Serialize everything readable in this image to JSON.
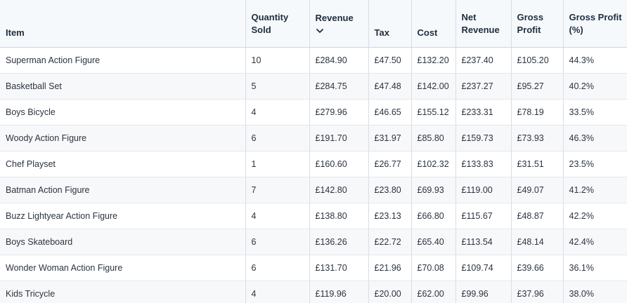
{
  "table": {
    "columns": [
      {
        "line1": "Item",
        "line2": ""
      },
      {
        "line1": "Quantity",
        "line2": "Sold"
      },
      {
        "line1": "Revenue",
        "line2": ""
      },
      {
        "line1": "Tax",
        "line2": ""
      },
      {
        "line1": "Cost",
        "line2": ""
      },
      {
        "line1": "Net",
        "line2": "Revenue"
      },
      {
        "line1": "Gross",
        "line2": "Profit"
      },
      {
        "line1": "Gross Profit",
        "line2": "(%)"
      }
    ],
    "sorted_by": "Revenue",
    "sort_direction": "descending",
    "sort_icon": "chevron-down-icon",
    "rows": [
      [
        "Superman Action Figure",
        "10",
        "£284.90",
        "£47.50",
        "£132.20",
        "£237.40",
        "£105.20",
        "44.3%"
      ],
      [
        "Basketball Set",
        "5",
        "£284.75",
        "£47.48",
        "£142.00",
        "£237.27",
        "£95.27",
        "40.2%"
      ],
      [
        "Boys Bicycle",
        "4",
        "£279.96",
        "£46.65",
        "£155.12",
        "£233.31",
        "£78.19",
        "33.5%"
      ],
      [
        "Woody Action Figure",
        "6",
        "£191.70",
        "£31.97",
        "£85.80",
        "£159.73",
        "£73.93",
        "46.3%"
      ],
      [
        "Chef Playset",
        "1",
        "£160.60",
        "£26.77",
        "£102.32",
        "£133.83",
        "£31.51",
        "23.5%"
      ],
      [
        "Batman Action Figure",
        "7",
        "£142.80",
        "£23.80",
        "£69.93",
        "£119.00",
        "£49.07",
        "41.2%"
      ],
      [
        "Buzz Lightyear Action Figure",
        "4",
        "£138.80",
        "£23.13",
        "£66.80",
        "£115.67",
        "£48.87",
        "42.2%"
      ],
      [
        "Boys Skateboard",
        "6",
        "£136.26",
        "£22.72",
        "£65.40",
        "£113.54",
        "£48.14",
        "42.4%"
      ],
      [
        "Wonder Woman Action Figure",
        "6",
        "£131.70",
        "£21.96",
        "£70.08",
        "£109.74",
        "£39.66",
        "36.1%"
      ],
      [
        "Kids Tricycle",
        "4",
        "£119.96",
        "£20.00",
        "£62.00",
        "£99.96",
        "£37.96",
        "38.0%"
      ]
    ]
  }
}
